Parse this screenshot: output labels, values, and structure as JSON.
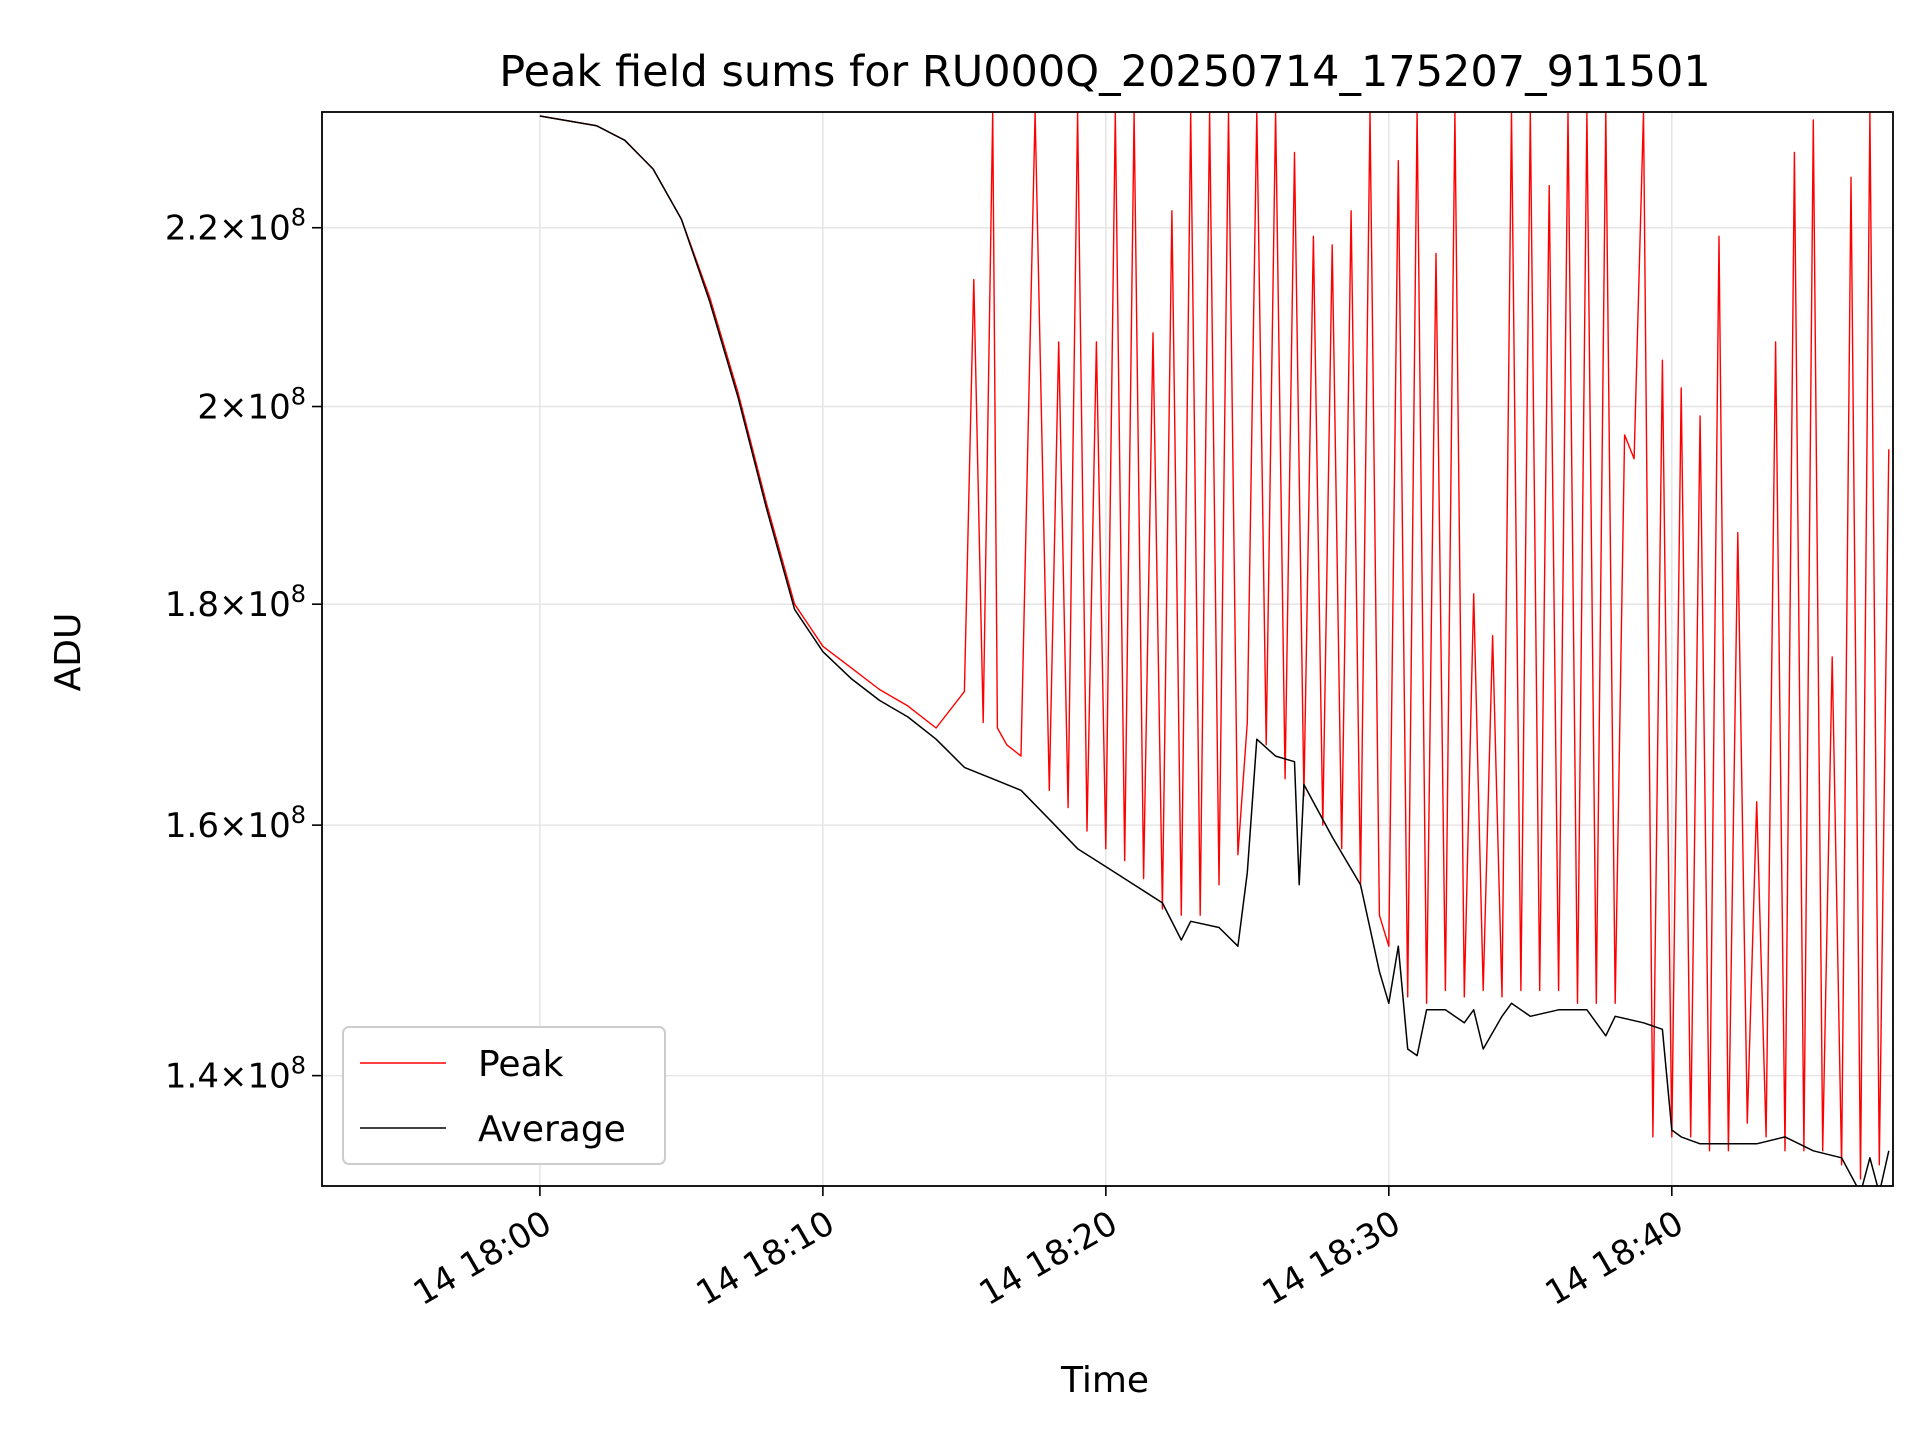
{
  "chart_data": {
    "type": "line",
    "title": "Peak field sums for RU000Q_20250714_175207_911501",
    "xlabel": "Time",
    "ylabel": "ADU",
    "y_scale": "log",
    "grid": true,
    "legend_position": "lower-left",
    "xlim": [
      "2025-07-14 17:52:18",
      "2025-07-14 18:47:49"
    ],
    "ylim": [
      132000000,
      234000000
    ],
    "x_ticks": [
      "14 18:00",
      "14 18:10",
      "14 18:20",
      "14 18:30",
      "14 18:40"
    ],
    "y_ticks": [
      {
        "value": 140000000,
        "mantissa": "1.4",
        "exponent": "8"
      },
      {
        "value": 160000000,
        "mantissa": "1.6",
        "exponent": "8"
      },
      {
        "value": 180000000,
        "mantissa": "1.8",
        "exponent": "8"
      },
      {
        "value": 200000000,
        "mantissa": "2",
        "exponent": "8"
      },
      {
        "value": 220000000,
        "mantissa": "2.2",
        "exponent": "8"
      }
    ],
    "series": [
      {
        "name": "Peak",
        "color": "#ff0000",
        "x": [
          "18:00:00",
          "18:02:00",
          "18:03:00",
          "18:04:00",
          "18:05:00",
          "18:06:00",
          "18:07:00",
          "18:08:00",
          "18:09:00",
          "18:09:30",
          "18:10:00",
          "18:11:00",
          "18:12:00",
          "18:13:00",
          "18:14:00",
          "18:15:00",
          "18:15:20",
          "18:15:40",
          "18:16:00",
          "18:16:10",
          "18:16:30",
          "18:17:00",
          "18:17:30",
          "18:18:00",
          "18:18:20",
          "18:18:40",
          "18:19:00",
          "18:19:20",
          "18:19:40",
          "18:20:00",
          "18:20:20",
          "18:20:40",
          "18:21:00",
          "18:21:20",
          "18:21:40",
          "18:22:00",
          "18:22:20",
          "18:22:40",
          "18:23:00",
          "18:23:20",
          "18:23:40",
          "18:24:00",
          "18:24:20",
          "18:24:40",
          "18:25:00",
          "18:25:20",
          "18:25:40",
          "18:26:00",
          "18:26:20",
          "18:26:40",
          "18:27:00",
          "18:27:20",
          "18:27:40",
          "18:28:00",
          "18:28:20",
          "18:28:40",
          "18:29:00",
          "18:29:20",
          "18:29:40",
          "18:30:00",
          "18:30:20",
          "18:30:40",
          "18:31:00",
          "18:31:20",
          "18:31:40",
          "18:32:00",
          "18:32:20",
          "18:32:40",
          "18:33:00",
          "18:33:20",
          "18:33:40",
          "18:34:00",
          "18:34:20",
          "18:34:40",
          "18:35:00",
          "18:35:20",
          "18:35:40",
          "18:36:00",
          "18:36:20",
          "18:36:40",
          "18:37:00",
          "18:37:20",
          "18:37:40",
          "18:38:00",
          "18:38:20",
          "18:38:40",
          "18:39:00",
          "18:39:20",
          "18:39:40",
          "18:40:00",
          "18:40:20",
          "18:40:40",
          "18:41:00",
          "18:41:20",
          "18:41:40",
          "18:42:00",
          "18:42:20",
          "18:42:40",
          "18:43:00",
          "18:43:20",
          "18:43:40",
          "18:44:00",
          "18:44:20",
          "18:44:40",
          "18:45:00",
          "18:45:20",
          "18:45:40",
          "18:46:00",
          "18:46:20",
          "18:46:40",
          "18:47:00",
          "18:47:20",
          "18:47:40"
        ],
        "values": [
          233500000,
          232300000,
          230500000,
          227000000,
          221000000,
          212000000,
          201500000,
          190000000,
          180000000,
          178000000,
          176000000,
          174000000,
          172000000,
          170500000,
          168500000,
          171800000,
          214000000,
          169000000,
          234000000,
          168500000,
          167000000,
          166000000,
          234000000,
          163000000,
          207000000,
          161500000,
          234000000,
          159500000,
          207000000,
          158000000,
          234000000,
          157000000,
          234000000,
          155500000,
          208000000,
          153000000,
          222000000,
          152500000,
          234000000,
          152500000,
          234000000,
          155000000,
          234000000,
          157500000,
          169000000,
          234000000,
          167000000,
          234000000,
          164000000,
          229000000,
          162500000,
          219000000,
          160000000,
          218000000,
          158000000,
          222000000,
          155000000,
          234000000,
          152500000,
          150000000,
          228000000,
          146000000,
          234000000,
          145500000,
          217000000,
          146500000,
          234000000,
          146000000,
          181000000,
          146500000,
          177000000,
          146000000,
          234000000,
          146500000,
          234000000,
          146500000,
          225000000,
          146500000,
          234000000,
          145500000,
          234000000,
          145500000,
          234000000,
          145500000,
          197000000,
          194500000,
          234000000,
          135500000,
          205000000,
          135500000,
          202000000,
          135500000,
          199000000,
          134500000,
          219000000,
          134500000,
          187000000,
          136500000,
          162000000,
          135500000,
          207000000,
          134500000,
          229000000,
          134500000,
          233000000,
          134500000,
          175000000,
          133500000,
          226000000,
          132500000,
          234000000,
          133500000,
          195500000
        ]
      },
      {
        "name": "Average",
        "color": "#000000",
        "x": [
          "18:00:00",
          "18:02:00",
          "18:03:00",
          "18:04:00",
          "18:05:00",
          "18:06:00",
          "18:07:00",
          "18:08:00",
          "18:09:00",
          "18:09:30",
          "18:10:00",
          "18:11:00",
          "18:12:00",
          "18:13:00",
          "18:14:00",
          "18:15:00",
          "18:16:00",
          "18:17:00",
          "18:18:00",
          "18:19:00",
          "18:20:00",
          "18:21:00",
          "18:22:00",
          "18:22:40",
          "18:23:00",
          "18:24:00",
          "18:24:40",
          "18:25:00",
          "18:25:20",
          "18:26:00",
          "18:26:40",
          "18:26:50",
          "18:27:00",
          "18:28:00",
          "18:29:00",
          "18:29:40",
          "18:30:00",
          "18:30:20",
          "18:30:40",
          "18:31:00",
          "18:31:20",
          "18:32:00",
          "18:32:40",
          "18:33:00",
          "18:33:20",
          "18:34:00",
          "18:34:20",
          "18:35:00",
          "18:36:00",
          "18:37:00",
          "18:37:40",
          "18:38:00",
          "18:39:00",
          "18:39:40",
          "18:40:00",
          "18:40:20",
          "18:41:00",
          "18:42:00",
          "18:43:00",
          "18:44:00",
          "18:45:00",
          "18:46:00",
          "18:46:40",
          "18:47:00",
          "18:47:20",
          "18:47:40"
        ],
        "values": [
          233500000,
          232300000,
          230500000,
          227000000,
          221000000,
          211500000,
          201000000,
          189500000,
          179500000,
          177500000,
          175500000,
          173000000,
          171000000,
          169500000,
          167500000,
          165000000,
          164000000,
          163000000,
          160500000,
          158000000,
          156500000,
          155000000,
          153500000,
          150500000,
          152000000,
          151500000,
          150000000,
          156000000,
          167500000,
          166000000,
          165500000,
          155000000,
          163500000,
          159000000,
          155000000,
          148000000,
          145500000,
          150000000,
          142000000,
          141500000,
          145000000,
          145000000,
          144000000,
          145000000,
          142000000,
          144500000,
          145500000,
          144500000,
          145000000,
          145000000,
          143000000,
          144500000,
          144000000,
          143500000,
          136000000,
          135500000,
          135000000,
          135000000,
          135000000,
          135500000,
          134500000,
          134000000,
          131500000,
          134000000,
          131500000,
          134500000
        ]
      }
    ]
  }
}
